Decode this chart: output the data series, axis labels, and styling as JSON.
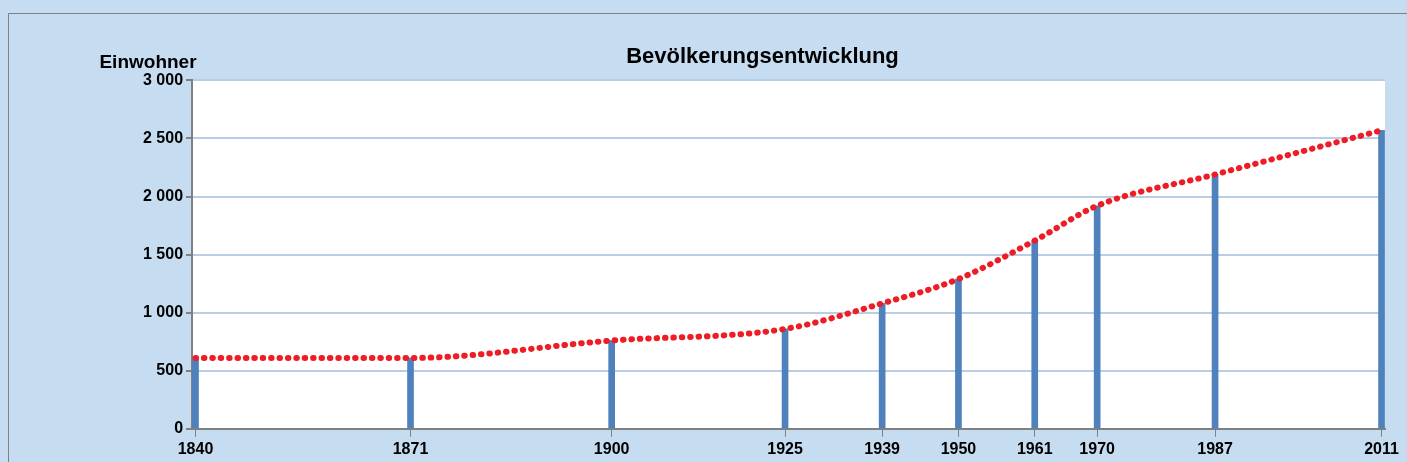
{
  "chart_data": {
    "type": "bar",
    "title": "Bevölkerungsentwicklung",
    "ylabel": "Einwohner",
    "x": [
      1840,
      1871,
      1900,
      1925,
      1939,
      1950,
      1961,
      1970,
      1987,
      2011
    ],
    "series": [
      {
        "color": "#4f81bd",
        "values": [
          610,
          610,
          760,
          860,
          1080,
          1290,
          1620,
          1920,
          2190,
          2570
        ]
      },
      {
        "type": "line",
        "color": "#ee1c25",
        "line_style": "dotted",
        "marker": "none",
        "values": [
          610,
          610,
          760,
          860,
          1080,
          1290,
          1620,
          1920,
          2190,
          2570
        ]
      }
    ],
    "xlim": [
      1839.5,
      2011.5
    ],
    "xticks": [
      1840,
      1871,
      1900,
      1925,
      1939,
      1950,
      1961,
      1970,
      1987,
      2011
    ],
    "ylim": [
      0,
      3000
    ],
    "yticks": [
      {
        "value": 0,
        "label": "0"
      },
      {
        "value": 500,
        "label": "500"
      },
      {
        "value": 1000,
        "label": "1 000"
      },
      {
        "value": 1500,
        "label": "1 500"
      },
      {
        "value": 2000,
        "label": "2 000"
      },
      {
        "value": 2500,
        "label": "2 500"
      },
      {
        "value": 3000,
        "label": "3 000"
      }
    ],
    "grid": "y"
  }
}
